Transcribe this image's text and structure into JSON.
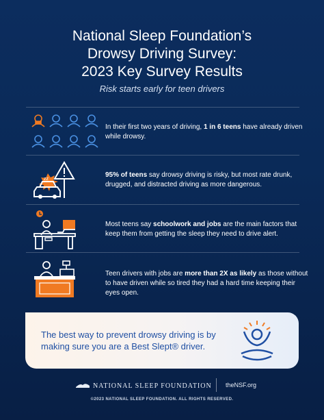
{
  "header": {
    "title_lines": [
      "National Sleep Foundation’s",
      "Drowsy Driving Survey:",
      "2023 Key Survey Results"
    ],
    "subtitle": "Risk starts early for teen drivers"
  },
  "findings": [
    {
      "icon": "teens-grid-icon",
      "text_before": "In their first two years of driving, ",
      "text_bold": "1 in 6 teens",
      "text_after": " have already driven while drowsy."
    },
    {
      "icon": "risky-car-icon",
      "text_before": "",
      "text_bold": "95% of teens",
      "text_after": " say drowsy driving is risky, but most rate drunk, drugged, and distracted driving as more dangerous."
    },
    {
      "icon": "student-desk-icon",
      "text_before": "Most teens say ",
      "text_bold": "schoolwork and jobs",
      "text_after": " are the main factors that keep them from getting the sleep they need to drive alert."
    },
    {
      "icon": "cashier-icon",
      "text_before": "Teen drivers with jobs are ",
      "text_bold": "more than 2X as likely",
      "text_after": " as those without to have driven while so tired they had a hard time keeping their eyes open."
    }
  ],
  "callout": {
    "text": "The best way to prevent drowsy driving is by making sure you are a Best Slept® driver.",
    "icon": "best-slept-person-icon"
  },
  "footer": {
    "org_name": "NATIONAL SLEEP FOUNDATION",
    "url": "theNSF.org",
    "copyright": "©2023 NATIONAL SLEEP FOUNDATION. ALL RIGHTS RESERVED."
  },
  "colors": {
    "background": "#0a2a58",
    "accent_orange": "#f07a22",
    "icon_blue": "#4a90e2",
    "callout_text": "#1f4fa3"
  }
}
